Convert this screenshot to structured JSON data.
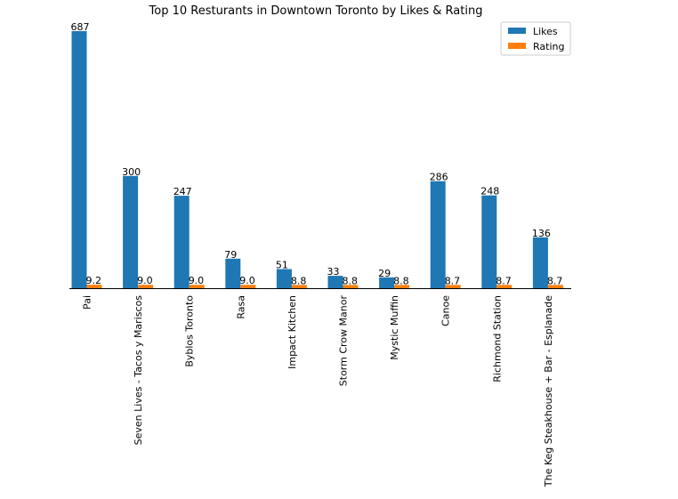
{
  "chart_data": {
    "type": "bar",
    "title": "Top 10 Resturants in Downtown Toronto by Likes & Rating",
    "categories": [
      "Pai",
      "Seven Lives - Tacos y Mariscos",
      "Byblos Toronto",
      "Rasa",
      "Impact Kitchen",
      "Storm Crow Manor",
      "Mystic Muffin",
      "Canoe",
      "Richmond Station",
      "The Keg Steakhouse + Bar - Esplanade"
    ],
    "series": [
      {
        "name": "Likes",
        "color": "#1f77b4",
        "values": [
          687,
          300,
          247,
          79,
          51,
          33,
          29,
          286,
          248,
          136
        ],
        "labels": [
          "687",
          "300",
          "247",
          "79",
          "51",
          "33",
          "29",
          "286",
          "248",
          "136"
        ]
      },
      {
        "name": "Rating",
        "color": "#ff7f0e",
        "values": [
          9.2,
          9.0,
          9.0,
          9.0,
          8.8,
          8.8,
          8.8,
          8.7,
          8.7,
          8.7
        ],
        "labels": [
          "9.2",
          "9.0",
          "9.0",
          "9.0",
          "8.8",
          "8.8",
          "8.8",
          "8.7",
          "8.7",
          "8.7"
        ]
      }
    ],
    "ylim": [
      0,
      687
    ],
    "grid": false,
    "legend": "top-right"
  }
}
